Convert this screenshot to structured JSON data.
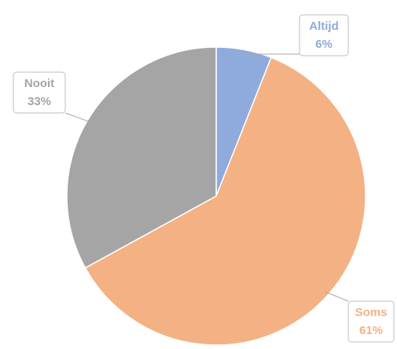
{
  "chart_data": {
    "type": "pie",
    "categories": [
      "Altijd",
      "Soms",
      "Nooit"
    ],
    "values": [
      6,
      61,
      33
    ],
    "value_labels": [
      "6%",
      "61%",
      "33%"
    ],
    "colors": [
      "#8faadc",
      "#f4b183",
      "#a5a5a5"
    ]
  }
}
